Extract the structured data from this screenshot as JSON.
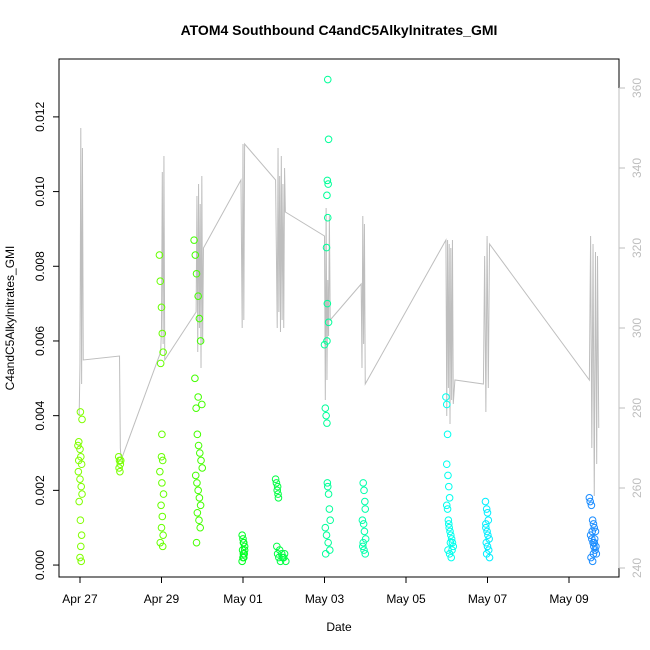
{
  "chart_data": {
    "type": "scatter",
    "title": "ATOM4 Southbound C4andC5Alkylnitrates_GMI",
    "x_label": "Date",
    "y_label": "C4andC5Alkylnitrates_GMI",
    "xlim": [
      -0.515,
      13.227
    ],
    "xticks": [
      {
        "value": 0,
        "label": "Apr 27"
      },
      {
        "value": 2,
        "label": "Apr 29"
      },
      {
        "value": 4,
        "label": "May 01"
      },
      {
        "value": 6,
        "label": "May 03"
      },
      {
        "value": 8,
        "label": "May 05"
      },
      {
        "value": 10,
        "label": "May 07"
      },
      {
        "value": 12,
        "label": "May 09"
      }
    ],
    "ylim": [
      -0.00032,
      0.01355
    ],
    "yticks": [
      {
        "value": 0,
        "label": "0.000"
      },
      0.002,
      0.004,
      0.006,
      0.008,
      {
        "value": 0.01,
        "label": "0.010"
      },
      0.012
    ],
    "y2lim": [
      237.75,
      367.25
    ],
    "y2ticks": [
      240,
      260,
      280,
      300,
      320,
      340,
      360
    ],
    "series": [
      {
        "color": "#80ff00",
        "style": "points",
        "x": [
          -0.05,
          -0.03,
          0,
          0.02,
          0.04,
          -0.04,
          0,
          0.03,
          0.05,
          -0.02,
          0.01,
          0.04,
          0.02,
          0,
          0.03,
          0.05,
          -0.03,
          0.01
        ],
        "values": [
          0.0032,
          0.0033,
          0.0031,
          0.0029,
          0.0027,
          0.0025,
          0.0023,
          0.0021,
          0.0019,
          0.0017,
          0.0012,
          0.0008,
          0.0005,
          0.0002,
          0.0001,
          0.0039,
          0.0028,
          0.0041
        ]
      },
      {
        "color": "#78ff00",
        "style": "points",
        "x": [
          0.95,
          0.97,
          0.99,
          0.96,
          0.98,
          1.0
        ],
        "values": [
          0.0029,
          0.0028,
          0.0027,
          0.0026,
          0.0025,
          0.0028
        ]
      },
      {
        "color": "#66ff00",
        "style": "points",
        "x": [
          1.95,
          1.97,
          2.0,
          2.02,
          2.04,
          1.98,
          2.0,
          2.03,
          1.96,
          2.01,
          2.05,
          1.99,
          2.02,
          2.0,
          2.04,
          1.97,
          2.03,
          2.01
        ],
        "values": [
          0.0083,
          0.0076,
          0.0069,
          0.0062,
          0.0057,
          0.0054,
          0.0029,
          0.0028,
          0.0025,
          0.0022,
          0.0019,
          0.0016,
          0.0013,
          0.001,
          0.0008,
          0.0006,
          0.0005,
          0.0035
        ]
      },
      {
        "color": "#44ff00",
        "style": "points",
        "x": [
          2.8,
          2.83,
          2.86,
          2.9,
          2.93,
          2.96,
          2.99,
          2.82,
          2.85,
          2.88,
          2.91,
          2.94,
          2.97,
          3.0,
          2.84,
          2.87,
          2.9,
          2.93,
          2.96,
          2.88,
          2.92,
          2.95,
          2.86,
          2.9
        ],
        "values": [
          0.0087,
          0.0083,
          0.0078,
          0.0072,
          0.0066,
          0.006,
          0.0043,
          0.005,
          0.0042,
          0.0035,
          0.0032,
          0.003,
          0.0028,
          0.0026,
          0.0024,
          0.0022,
          0.002,
          0.0018,
          0.0016,
          0.0014,
          0.0012,
          0.001,
          0.0006,
          0.0045
        ]
      },
      {
        "color": "#00ff22",
        "style": "points",
        "x": [
          3.98,
          4.0,
          4.02,
          4.04,
          3.99,
          4.01,
          4.03,
          4.0,
          4.02,
          3.98,
          4.04,
          4.01
        ],
        "values": [
          0.0008,
          0.0007,
          0.0006,
          0.0005,
          0.0004,
          0.0003,
          0.0003,
          0.0002,
          0.0002,
          0.0001,
          0.0004,
          0.0006
        ]
      },
      {
        "color": "#00ff44",
        "style": "points",
        "x": [
          4.8,
          4.82,
          4.84,
          4.86,
          4.9,
          4.95,
          5.0,
          5.05,
          4.83,
          4.85,
          4.88,
          4.92,
          4.97,
          5.02,
          4.85,
          4.87
        ],
        "values": [
          0.0023,
          0.0022,
          0.002,
          0.0019,
          0.0004,
          0.0003,
          0.0002,
          0.0001,
          0.0005,
          0.0003,
          0.0002,
          0.0001,
          0.0002,
          0.0003,
          0.0021,
          0.0018
        ]
      },
      {
        "color": "#00ff99",
        "style": "points",
        "x": [
          6.08,
          6.1,
          6.07,
          6.09,
          6.06,
          6.08,
          6.05,
          6.07,
          6.1,
          6.06,
          6.0,
          6.02,
          6.04,
          6.06,
          6.08,
          6.1,
          6.12,
          6.14,
          6.02,
          6.05,
          6.09,
          6.13,
          6.03,
          6.07
        ],
        "values": [
          0.013,
          0.0114,
          0.0103,
          0.0102,
          0.0099,
          0.0093,
          0.0085,
          0.007,
          0.0065,
          0.006,
          0.0059,
          0.0042,
          0.004,
          0.0038,
          0.0021,
          0.0019,
          0.0015,
          0.0012,
          0.001,
          0.0008,
          0.0006,
          0.0004,
          0.0003,
          0.0022
        ]
      },
      {
        "color": "#00ffaa",
        "style": "points",
        "x": [
          6.95,
          6.97,
          6.99,
          7.0,
          6.93,
          6.96,
          6.98,
          7.01,
          6.94,
          6.97,
          7.0,
          6.95
        ],
        "values": [
          0.0022,
          0.002,
          0.0017,
          0.0015,
          0.0012,
          0.0011,
          0.0009,
          0.0007,
          0.0005,
          0.0004,
          0.0003,
          0.0006
        ]
      },
      {
        "color": "#00ffee",
        "style": "points",
        "x": [
          8.98,
          9.0,
          9.02,
          9.0,
          9.03,
          9.05,
          9.07,
          9.0,
          9.02,
          9.04,
          9.06,
          9.08,
          9.1,
          9.12,
          9.14,
          9.16,
          9.03,
          9.07,
          9.11,
          9.05,
          9.09,
          9.13
        ],
        "values": [
          0.0045,
          0.0043,
          0.0035,
          0.0027,
          0.0024,
          0.0021,
          0.0018,
          0.0016,
          0.0015,
          0.0012,
          0.001,
          0.0009,
          0.0008,
          0.0007,
          0.0006,
          0.0005,
          0.0004,
          0.0003,
          0.0002,
          0.0011,
          0.0006,
          0.0004
        ]
      },
      {
        "color": "#00eeff",
        "style": "points",
        "x": [
          9.95,
          9.98,
          10.0,
          10.02,
          9.96,
          9.99,
          10.01,
          10.04,
          9.97,
          10.0,
          10.03,
          9.98,
          10.05,
          9.96
        ],
        "values": [
          0.0017,
          0.0015,
          0.0014,
          0.0012,
          0.001,
          0.0009,
          0.0008,
          0.0007,
          0.0006,
          0.0005,
          0.0004,
          0.0003,
          0.0002,
          0.0011
        ]
      },
      {
        "color": "#1a8cff",
        "style": "points",
        "x": [
          12.5,
          12.52,
          12.55,
          12.58,
          12.6,
          12.62,
          12.65,
          12.53,
          12.56,
          12.59,
          12.61,
          12.64,
          12.67,
          12.54,
          12.58,
          12.62,
          12.66,
          12.57,
          12.6,
          12.63
        ],
        "values": [
          0.0018,
          0.0017,
          0.0016,
          0.0012,
          0.0011,
          0.001,
          0.0009,
          0.0008,
          0.0007,
          0.0006,
          0.0005,
          0.0004,
          0.0003,
          0.0002,
          0.0001,
          0.0006,
          0.0005,
          0.0009,
          0.0003,
          0.0007
        ]
      },
      {
        "color": "#bebebe",
        "style": "line",
        "axis": "y2",
        "x": [
          -0.02,
          0.0,
          0.02,
          0.04,
          0.06,
          0.08,
          0.97,
          0.99,
          1.01,
          1.98,
          2.0,
          2.02,
          2.04,
          2.06,
          2.08,
          2.4,
          2.85,
          2.87,
          2.89,
          2.91,
          2.93,
          2.95,
          2.97,
          2.99,
          3.01,
          3.03,
          3.95,
          3.98,
          4.0,
          4.02,
          4.04,
          4.8,
          4.84,
          4.86,
          4.88,
          4.9,
          4.92,
          4.94,
          4.96,
          4.98,
          5.0,
          5.02,
          5.04,
          6.0,
          6.02,
          6.04,
          6.06,
          6.08,
          6.1,
          6.12,
          6.14,
          6.9,
          6.92,
          6.94,
          6.96,
          6.98,
          7.0,
          8.98,
          9.0,
          9.02,
          9.04,
          9.06,
          9.08,
          9.1,
          9.12,
          9.14,
          9.16,
          9.2,
          9.9,
          9.93,
          9.96,
          9.99,
          10.02,
          10.05,
          12.5,
          12.53,
          12.56,
          12.59,
          12.62,
          12.65,
          12.68,
          12.7,
          12.73
        ],
        "values": [
          278,
          291,
          350,
          286,
          345,
          292,
          293,
          270,
          267,
          294,
          300,
          339,
          296,
          343,
          292,
          297,
          304,
          333,
          294,
          336,
          300,
          331,
          290,
          338,
          296,
          320,
          337,
          300,
          346,
          302,
          346,
          337,
          300,
          345,
          304,
          338,
          299,
          343,
          302,
          336,
          300,
          340,
          329,
          323,
          282,
          330,
          287,
          312,
          298,
          328,
          302,
          311,
          290,
          328,
          296,
          326,
          286,
          322,
          278,
          322,
          285,
          321,
          276,
          320,
          282,
          322,
          281,
          287,
          286,
          318,
          279,
          323,
          285,
          321,
          287,
          323,
          270,
          321,
          258,
          319,
          266,
          318,
          275
        ]
      }
    ]
  }
}
